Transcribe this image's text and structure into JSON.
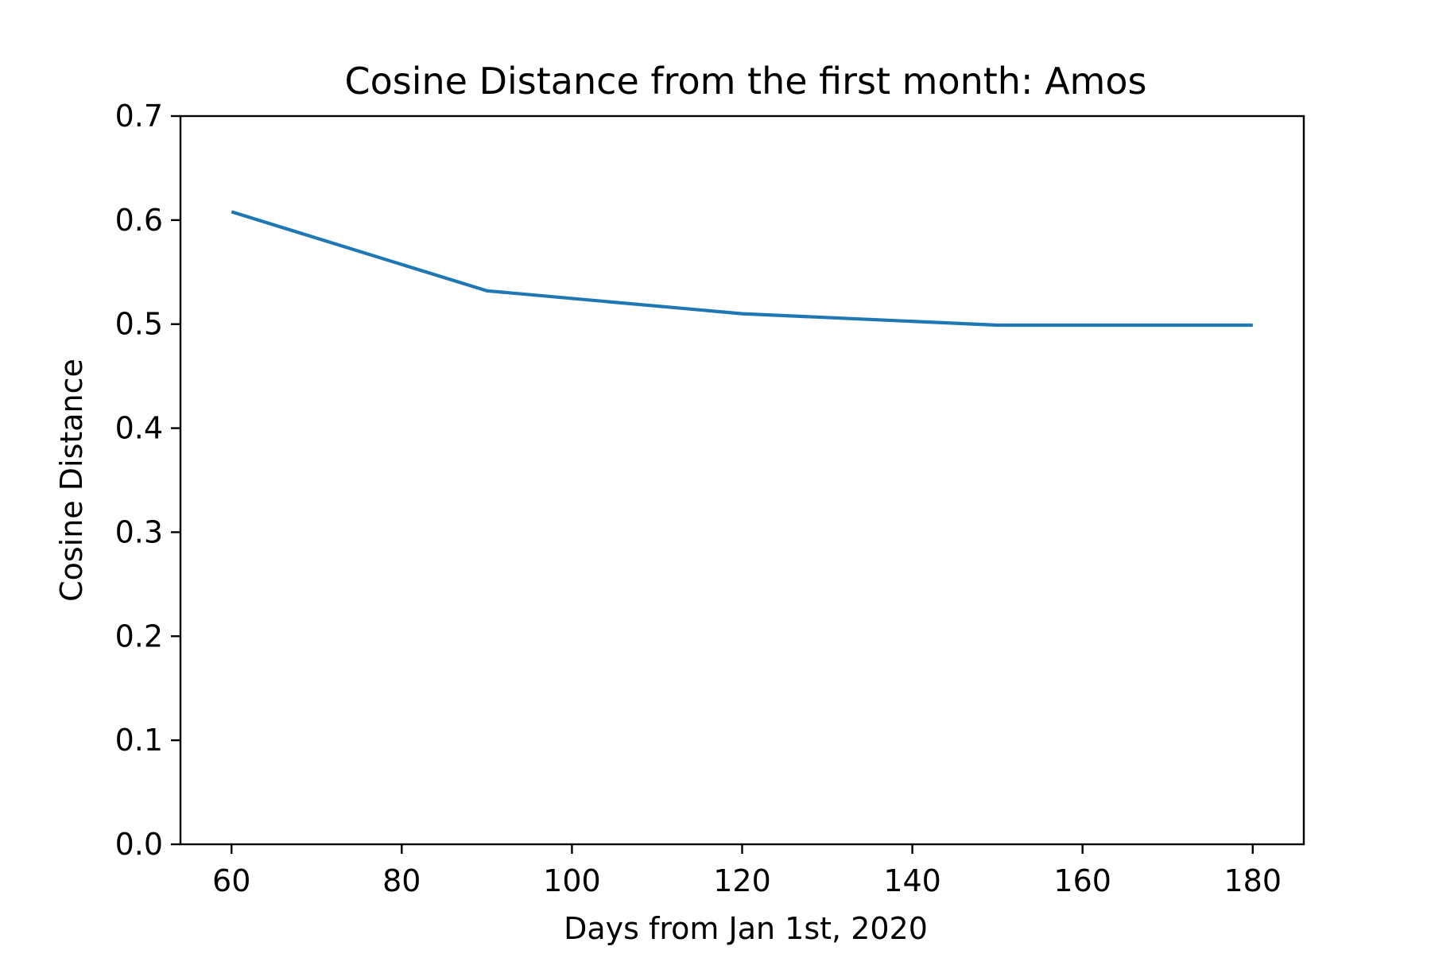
{
  "chart_data": {
    "type": "line",
    "title": "Cosine Distance from the first month: Amos",
    "xlabel": "Days from Jan 1st, 2020",
    "ylabel": "Cosine Distance",
    "xlim": [
      54,
      186
    ],
    "ylim": [
      0.0,
      0.7
    ],
    "x_ticks": [
      60,
      80,
      100,
      120,
      140,
      160,
      180
    ],
    "x_tick_labels": [
      "60",
      "80",
      "100",
      "120",
      "140",
      "160",
      "180"
    ],
    "y_ticks": [
      0.0,
      0.1,
      0.2,
      0.3,
      0.4,
      0.5,
      0.6,
      0.7
    ],
    "y_tick_labels": [
      "0.0",
      "0.1",
      "0.2",
      "0.3",
      "0.4",
      "0.5",
      "0.6",
      "0.7"
    ],
    "grid": false,
    "series": [
      {
        "color": "#1f77b4",
        "x": [
          60,
          90,
          120,
          150,
          180
        ],
        "y": [
          0.608,
          0.532,
          0.51,
          0.499,
          0.499
        ]
      }
    ]
  }
}
